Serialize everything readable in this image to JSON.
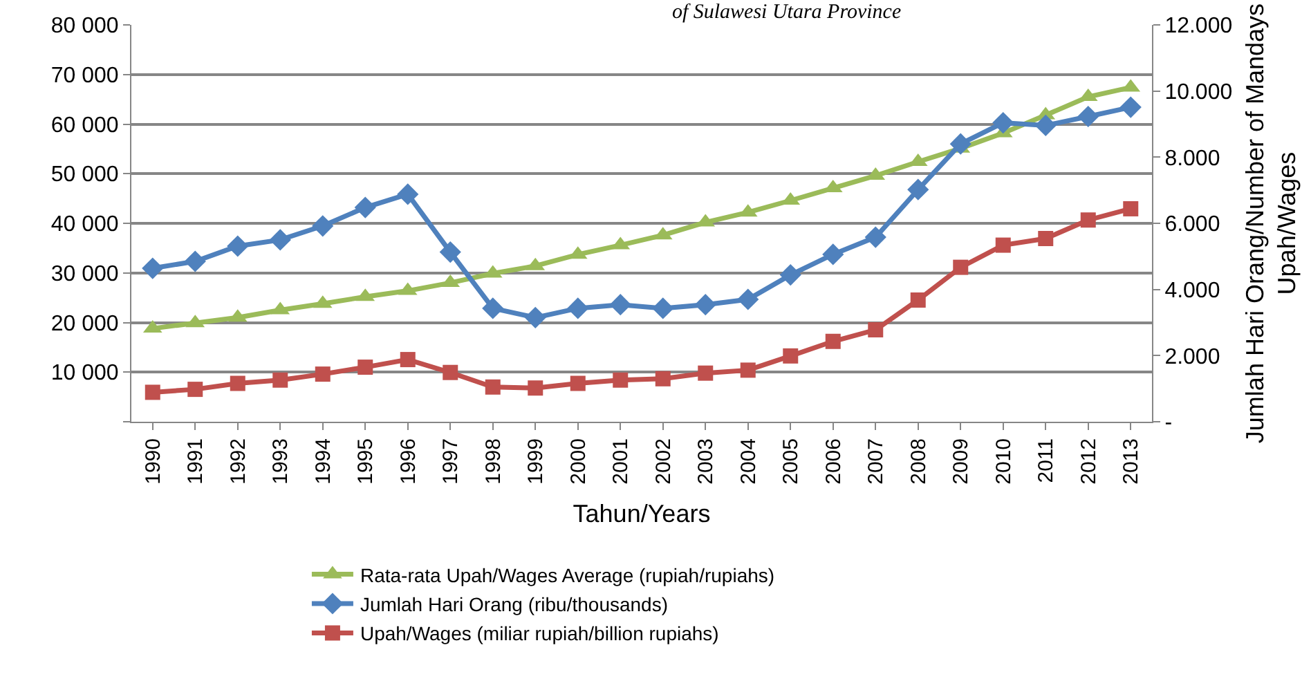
{
  "chart_data": {
    "type": "line",
    "title": "of Sulawesi Utara Province",
    "xlabel": "Tahun/Years",
    "y2label": "Jumlah Hari Orang/Number of Mandays\nUpah/Wages",
    "categories": [
      "1990",
      "1991",
      "1992",
      "1993",
      "1994",
      "1995",
      "1996",
      "1997",
      "1998",
      "1999",
      "2000",
      "2001",
      "2002",
      "2003",
      "2004",
      "2005",
      "2006",
      "2007",
      "2008",
      "2009",
      "2010",
      "2011",
      "2012",
      "2013"
    ],
    "series": [
      {
        "name": "Rata-rata Upah/Wages Average (rupiah/rupiahs)",
        "color": "#9bbb59",
        "marker": "triangle",
        "values": [
          18800,
          19900,
          21000,
          22500,
          23800,
          25200,
          26400,
          28000,
          29900,
          31400,
          33700,
          35600,
          37600,
          40200,
          42200,
          44600,
          47100,
          49600,
          52400,
          55100,
          58200,
          61800,
          65500,
          67400
        ]
      },
      {
        "name": "Jumlah Hari Orang (ribu/thousands)",
        "color": "#4f81bd",
        "marker": "diamond",
        "axis": "y2",
        "values": [
          4640,
          4850,
          5310,
          5500,
          5920,
          6480,
          6880,
          5130,
          3430,
          3150,
          3430,
          3540,
          3430,
          3540,
          3700,
          4440,
          5060,
          5580,
          7020,
          8400,
          9040,
          8960,
          9230,
          9510
        ]
      },
      {
        "name": "Upah/Wages (miliar rupiah/billion rupiahs)",
        "color": "#c0504d",
        "marker": "square",
        "axis": "y2",
        "values": [
          890,
          980,
          1160,
          1260,
          1440,
          1650,
          1880,
          1490,
          1050,
          1020,
          1160,
          1260,
          1300,
          1470,
          1560,
          1990,
          2430,
          2780,
          3680,
          4670,
          5340,
          5540,
          6100,
          6440
        ]
      }
    ],
    "ylim": [
      0,
      80000
    ],
    "yticks": [
      {
        "value": 0,
        "label": null
      },
      {
        "value": 10000,
        "label": "10 000"
      },
      {
        "value": 20000,
        "label": "20 000"
      },
      {
        "value": 30000,
        "label": "30 000"
      },
      {
        "value": 40000,
        "label": "40 000"
      },
      {
        "value": 50000,
        "label": "50 000"
      },
      {
        "value": 60000,
        "label": "60 000"
      },
      {
        "value": 70000,
        "label": "70 000"
      },
      {
        "value": 80000,
        "label": "80 000"
      }
    ],
    "y2lim": [
      0,
      12000
    ],
    "y2ticks": [
      {
        "value": 0,
        "label": "-"
      },
      {
        "value": 2000,
        "label": "2.000"
      },
      {
        "value": 4000,
        "label": "4.000"
      },
      {
        "value": 6000,
        "label": "6.000"
      },
      {
        "value": 8000,
        "label": "8.000"
      },
      {
        "value": 10000,
        "label": "10.000"
      },
      {
        "value": 12000,
        "label": "12.000"
      }
    ],
    "grid": "y",
    "legend": "bottom",
    "line_style": "solid"
  }
}
